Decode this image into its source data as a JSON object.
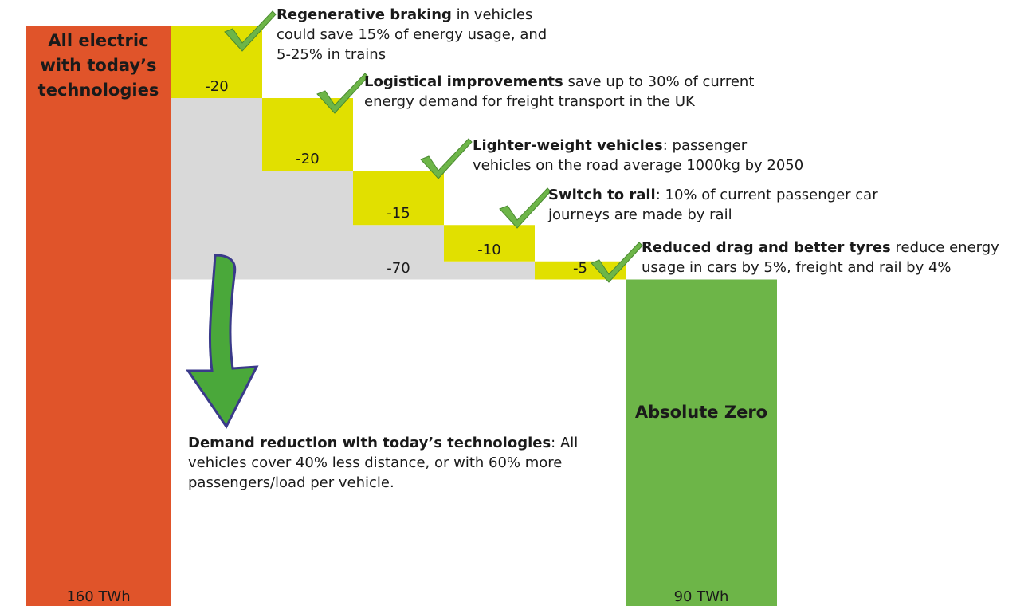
{
  "chart_data": {
    "type": "waterfall",
    "ylim": [
      0,
      160
    ],
    "start": {
      "label": "All electric with today’s technologies",
      "value": 160,
      "value_label": "160 TWh",
      "color": "#e0542a"
    },
    "steps": [
      {
        "name": "Regenerative braking",
        "description": " in vehicles could save 15% of energy usage, and 5-25% in trains",
        "value": -20
      },
      {
        "name": "Logistical improvements",
        "description": " save up to 30% of current energy demand for freight transport in the UK",
        "value": -20
      },
      {
        "name": "Lighter-weight vehicles",
        "description": ": passenger vehicles on the road average 1000kg by 2050",
        "value": -15
      },
      {
        "name": "Switch to rail",
        "description": ": 10% of current passenger car journeys are made by rail",
        "value": -10
      },
      {
        "name": "Reduced drag and better tyres",
        "description": " reduce energy usage in cars by 5%, freight and rail by 4%",
        "value": -5
      }
    ],
    "step_color": "#e1e000",
    "total": {
      "value": -70,
      "color": "#d9d9d9"
    },
    "end": {
      "label": "Absolute Zero",
      "value": 90,
      "value_label": "90 TWh",
      "color": "#6db548"
    },
    "note": {
      "name": "Demand reduction with today’s technologies",
      "description": ": All vehicles cover 40% less distance, or with 60% more passengers/load per vehicle."
    }
  }
}
